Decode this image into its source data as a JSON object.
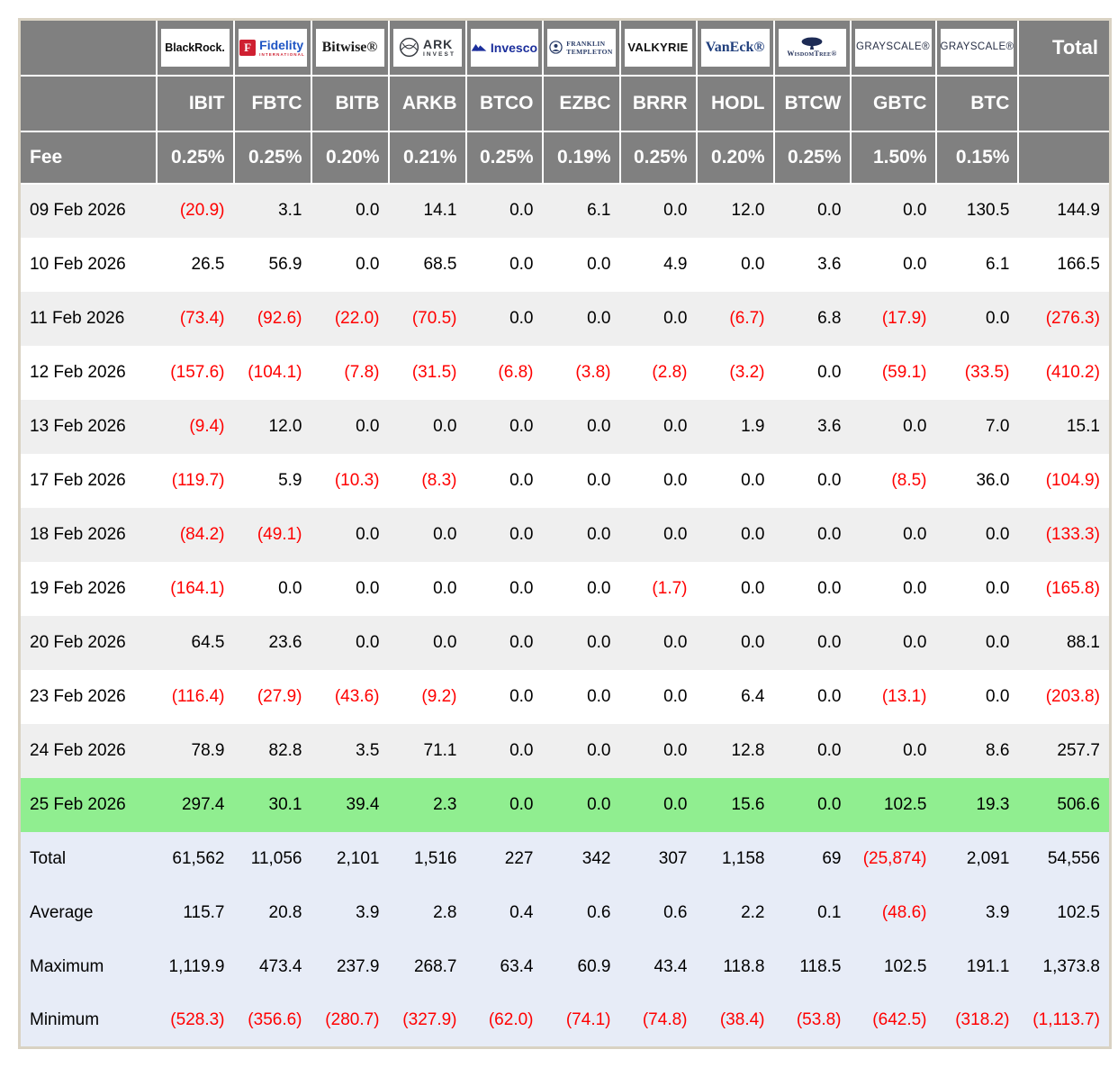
{
  "table": {
    "fee_row_label": "Fee",
    "total_column_label": "Total",
    "columns": [
      {
        "id": "ibit",
        "provider": "BlackRock",
        "logo_icon": "blackrock-logo",
        "ticker": "IBIT",
        "fee": "0.25%",
        "brand": {
          "kind": "blackrock",
          "primary": "BlackRock.",
          "color": "#0d0d0d"
        }
      },
      {
        "id": "fbtc",
        "provider": "Fidelity International",
        "logo_icon": "fidelity-logo",
        "ticker": "FBTC",
        "fee": "0.25%",
        "brand": {
          "kind": "fidelity",
          "tile": "F",
          "primary": "Fidelity",
          "secondary": "INTERNATIONAL",
          "color": "#1f55c4",
          "tile_color": "#cf2031",
          "secondary_color": "#cf2031"
        }
      },
      {
        "id": "bitb",
        "provider": "Bitwise",
        "logo_icon": "bitwise-logo",
        "ticker": "BITB",
        "fee": "0.20%",
        "brand": {
          "kind": "bitwise",
          "primary": "Bitwise®",
          "color": "#1c1c1c"
        }
      },
      {
        "id": "arkb",
        "provider": "ARK Invest",
        "logo_icon": "ark-invest-logo",
        "ticker": "ARKB",
        "fee": "0.21%",
        "brand": {
          "kind": "ark",
          "primary": "ARK",
          "secondary": "INVEST",
          "color": "#34383f"
        }
      },
      {
        "id": "btco",
        "provider": "Invesco",
        "logo_icon": "invesco-logo",
        "ticker": "BTCO",
        "fee": "0.25%",
        "brand": {
          "kind": "invesco",
          "primary": "Invesco",
          "color": "#1c2f9c"
        }
      },
      {
        "id": "ezbc",
        "provider": "Franklin Templeton",
        "logo_icon": "franklin-templeton-logo",
        "ticker": "EZBC",
        "fee": "0.19%",
        "brand": {
          "kind": "franklin",
          "primary": "FRANKLIN",
          "secondary": "TEMPLETON",
          "color": "#273a66"
        }
      },
      {
        "id": "brrr",
        "provider": "Valkyrie",
        "logo_icon": "valkyrie-logo",
        "ticker": "BRRR",
        "fee": "0.25%",
        "brand": {
          "kind": "valkyrie",
          "primary": "VALKYRIE",
          "color": "#111111"
        }
      },
      {
        "id": "hodl",
        "provider": "VanEck",
        "logo_icon": "vaneck-logo",
        "ticker": "HODL",
        "fee": "0.20%",
        "brand": {
          "kind": "vaneck",
          "primary": "VanEck®",
          "color": "#1f3e7c"
        }
      },
      {
        "id": "btcw",
        "provider": "WisdomTree",
        "logo_icon": "wisdomtree-logo",
        "ticker": "BTCW",
        "fee": "0.25%",
        "brand": {
          "kind": "wisdomtree",
          "primary": "WisdomTree®",
          "color": "#1d2b55"
        }
      },
      {
        "id": "gbtc",
        "provider": "Grayscale",
        "logo_icon": "grayscale-logo",
        "ticker": "GBTC",
        "fee": "1.50%",
        "brand": {
          "kind": "grayscale",
          "primary": "GRAYSCALE®",
          "color": "#272f45"
        }
      },
      {
        "id": "btc",
        "provider": "Grayscale",
        "logo_icon": "grayscale-logo",
        "ticker": "BTC",
        "fee": "0.15%",
        "brand": {
          "kind": "grayscale",
          "primary": "GRAYSCALE®",
          "color": "#272f45"
        }
      }
    ],
    "rows": [
      {
        "date": "09 Feb 2026",
        "values": [
          "(20.9)",
          "3.1",
          "0.0",
          "14.1",
          "0.0",
          "6.1",
          "0.0",
          "12.0",
          "0.0",
          "0.0",
          "130.5"
        ],
        "total": "144.9",
        "highlight": false
      },
      {
        "date": "10 Feb 2026",
        "values": [
          "26.5",
          "56.9",
          "0.0",
          "68.5",
          "0.0",
          "0.0",
          "4.9",
          "0.0",
          "3.6",
          "0.0",
          "6.1"
        ],
        "total": "166.5",
        "highlight": false
      },
      {
        "date": "11 Feb 2026",
        "values": [
          "(73.4)",
          "(92.6)",
          "(22.0)",
          "(70.5)",
          "0.0",
          "0.0",
          "0.0",
          "(6.7)",
          "6.8",
          "(17.9)",
          "0.0"
        ],
        "total": "(276.3)",
        "highlight": false
      },
      {
        "date": "12 Feb 2026",
        "values": [
          "(157.6)",
          "(104.1)",
          "(7.8)",
          "(31.5)",
          "(6.8)",
          "(3.8)",
          "(2.8)",
          "(3.2)",
          "0.0",
          "(59.1)",
          "(33.5)"
        ],
        "total": "(410.2)",
        "highlight": false
      },
      {
        "date": "13 Feb 2026",
        "values": [
          "(9.4)",
          "12.0",
          "0.0",
          "0.0",
          "0.0",
          "0.0",
          "0.0",
          "1.9",
          "3.6",
          "0.0",
          "7.0"
        ],
        "total": "15.1",
        "highlight": false
      },
      {
        "date": "17 Feb 2026",
        "values": [
          "(119.7)",
          "5.9",
          "(10.3)",
          "(8.3)",
          "0.0",
          "0.0",
          "0.0",
          "0.0",
          "0.0",
          "(8.5)",
          "36.0"
        ],
        "total": "(104.9)",
        "highlight": false
      },
      {
        "date": "18 Feb 2026",
        "values": [
          "(84.2)",
          "(49.1)",
          "0.0",
          "0.0",
          "0.0",
          "0.0",
          "0.0",
          "0.0",
          "0.0",
          "0.0",
          "0.0"
        ],
        "total": "(133.3)",
        "highlight": false
      },
      {
        "date": "19 Feb 2026",
        "values": [
          "(164.1)",
          "0.0",
          "0.0",
          "0.0",
          "0.0",
          "0.0",
          "(1.7)",
          "0.0",
          "0.0",
          "0.0",
          "0.0"
        ],
        "total": "(165.8)",
        "highlight": false
      },
      {
        "date": "20 Feb 2026",
        "values": [
          "64.5",
          "23.6",
          "0.0",
          "0.0",
          "0.0",
          "0.0",
          "0.0",
          "0.0",
          "0.0",
          "0.0",
          "0.0"
        ],
        "total": "88.1",
        "highlight": false
      },
      {
        "date": "23 Feb 2026",
        "values": [
          "(116.4)",
          "(27.9)",
          "(43.6)",
          "(9.2)",
          "0.0",
          "0.0",
          "0.0",
          "6.4",
          "0.0",
          "(13.1)",
          "0.0"
        ],
        "total": "(203.8)",
        "highlight": false
      },
      {
        "date": "24 Feb 2026",
        "values": [
          "78.9",
          "82.8",
          "3.5",
          "71.1",
          "0.0",
          "0.0",
          "0.0",
          "12.8",
          "0.0",
          "0.0",
          "8.6"
        ],
        "total": "257.7",
        "highlight": false
      },
      {
        "date": "25 Feb 2026",
        "values": [
          "297.4",
          "30.1",
          "39.4",
          "2.3",
          "0.0",
          "0.0",
          "0.0",
          "15.6",
          "0.0",
          "102.5",
          "19.3"
        ],
        "total": "506.6",
        "highlight": true
      }
    ],
    "summary_rows": [
      {
        "label": "Total",
        "values": [
          "61,562",
          "11,056",
          "2,101",
          "1,516",
          "227",
          "342",
          "307",
          "1,158",
          "69",
          "(25,874)",
          "2,091"
        ],
        "total": "54,556"
      },
      {
        "label": "Average",
        "values": [
          "115.7",
          "20.8",
          "3.9",
          "2.8",
          "0.4",
          "0.6",
          "0.6",
          "2.2",
          "0.1",
          "(48.6)",
          "3.9"
        ],
        "total": "102.5"
      },
      {
        "label": "Maximum",
        "values": [
          "1,119.9",
          "473.4",
          "237.9",
          "268.7",
          "63.4",
          "60.9",
          "43.4",
          "118.8",
          "118.5",
          "102.5",
          "191.1"
        ],
        "total": "1,373.8"
      },
      {
        "label": "Minimum",
        "values": [
          "(528.3)",
          "(356.6)",
          "(280.7)",
          "(327.9)",
          "(62.0)",
          "(74.1)",
          "(74.8)",
          "(38.4)",
          "(53.8)",
          "(642.5)",
          "(318.2)"
        ],
        "total": "(1,113.7)"
      }
    ]
  },
  "colors": {
    "header_bg": "#808080",
    "header_text": "#ffffff",
    "stripe_row_bg": "#efefef",
    "plain_row_bg": "#ffffff",
    "highlight_row_bg": "#90ee90",
    "summary_bg": "#e7ecf7",
    "negative_value": "#ff0000",
    "value_text": "#000000",
    "outer_border": "#d9d2c3",
    "logo_box_bg": "#ffffff"
  }
}
